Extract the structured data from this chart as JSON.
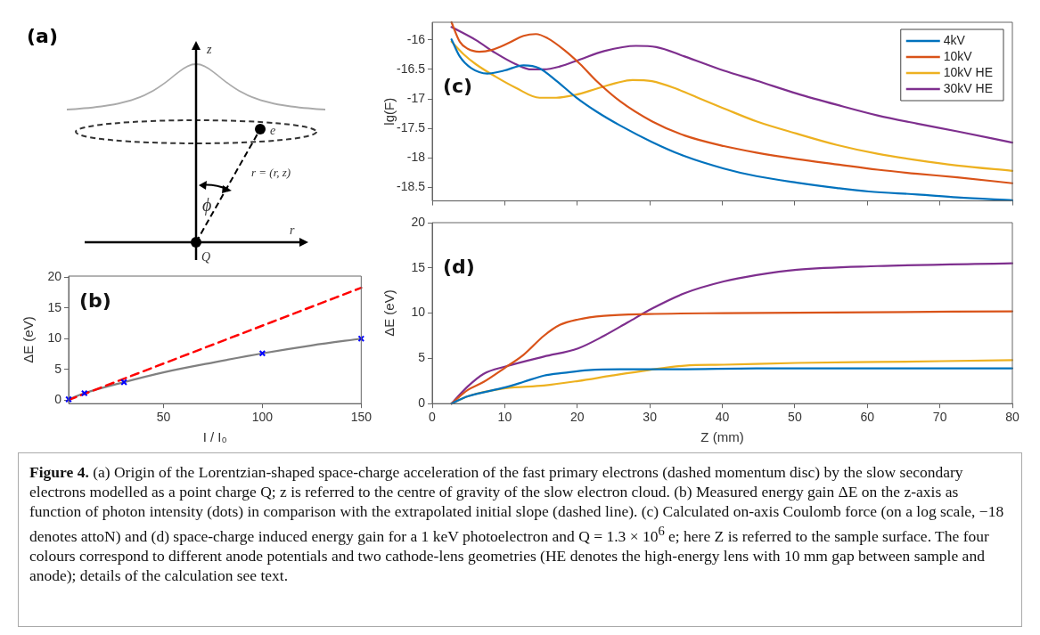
{
  "chart_data": [
    {
      "type": "other",
      "title": "(a)",
      "annotations": [
        "z",
        "e",
        "r = (r, z)",
        "ϕ",
        "Q",
        "r"
      ]
    },
    {
      "type": "line",
      "annotations": [
        "(b)"
      ],
      "xlabel": "I / I₀",
      "ylabel": "ΔE (eV)",
      "xlim": [
        2,
        150
      ],
      "xticks": [
        50,
        100,
        150
      ],
      "ylim": [
        -0.6,
        20.2
      ],
      "yticks": [
        0,
        5,
        10,
        15,
        20
      ],
      "series": [
        {
          "type": "scatter",
          "marker": "cross",
          "color": "#0000ff",
          "x": [
            2,
            10,
            30,
            100,
            150
          ],
          "values": [
            0.1,
            1.1,
            2.9,
            7.6,
            10.0
          ]
        },
        {
          "type": "line",
          "line_style": "dashed",
          "color": "#ff0000",
          "x": [
            2,
            150
          ],
          "values": [
            0,
            18.3
          ]
        },
        {
          "type": "line",
          "color": "#808080",
          "x": [
            2,
            10,
            30,
            50,
            75,
            100,
            125,
            150
          ],
          "values": [
            0.1,
            1.1,
            2.9,
            4.5,
            6.1,
            7.6,
            8.9,
            10.0
          ]
        }
      ]
    },
    {
      "type": "line",
      "annotations": [
        "(c)"
      ],
      "ylabel": "lg(F)",
      "xlim": [
        0,
        80
      ],
      "xticks": [
        0,
        10,
        20,
        30,
        40,
        50,
        60,
        70,
        80
      ],
      "ylim": [
        -18.73,
        -15.7
      ],
      "yticks": [
        -18.5,
        -18,
        -17.5,
        -17,
        -16.5,
        -16
      ],
      "tick_labels": "y",
      "legend": "top right",
      "x": [
        2.66,
        3.8,
        5.4,
        7.6,
        9.9,
        12.6,
        14.8,
        17.1,
        19.8,
        22.6,
        25.9,
        30.3,
        34.8,
        40.2,
        44.7,
        50.3,
        55.8,
        60.2,
        66.9,
        72.4,
        80
      ],
      "series": [
        {
          "name": "4kV",
          "color": "#0072bd",
          "values": [
            -15.99,
            -16.28,
            -16.48,
            -16.57,
            -16.52,
            -16.43,
            -16.48,
            -16.69,
            -16.97,
            -17.21,
            -17.45,
            -17.73,
            -17.97,
            -18.18,
            -18.31,
            -18.42,
            -18.51,
            -18.57,
            -18.62,
            -18.67,
            -18.72
          ]
        },
        {
          "name": "10kV",
          "color": "#d95319",
          "x": [
            2.66,
            3.8,
            4.9,
            6.5,
            8.2,
            10.4,
            12.6,
            14.3,
            15.9,
            18.2,
            20.4,
            22.6,
            25.9,
            30.3,
            34.8,
            40.2,
            44.7,
            50.3,
            55.8,
            61.4,
            66.9,
            72.4,
            80
          ],
          "values": [
            -15.7,
            -16.03,
            -16.15,
            -16.2,
            -16.17,
            -16.06,
            -15.93,
            -15.9,
            -15.97,
            -16.17,
            -16.41,
            -16.69,
            -17.04,
            -17.38,
            -17.62,
            -17.8,
            -17.91,
            -18.02,
            -18.11,
            -18.2,
            -18.27,
            -18.33,
            -18.43
          ]
        },
        {
          "name": "10kV HE",
          "color": "#edb120",
          "x": [
            2.66,
            4.3,
            6,
            8.7,
            11.5,
            14.8,
            17.1,
            19.8,
            22.6,
            25.4,
            27.6,
            30.3,
            33.7,
            37,
            40.2,
            44.7,
            50.3,
            55.8,
            61.4,
            66.9,
            72.4,
            80
          ],
          "values": [
            -16.03,
            -16.24,
            -16.41,
            -16.62,
            -16.81,
            -16.98,
            -16.98,
            -16.93,
            -16.83,
            -16.73,
            -16.68,
            -16.7,
            -16.83,
            -17.0,
            -17.16,
            -17.38,
            -17.59,
            -17.78,
            -17.93,
            -18.04,
            -18.13,
            -18.22
          ]
        },
        {
          "name": "30kV HE",
          "color": "#7e2f8e",
          "x": [
            2.66,
            6,
            8.7,
            11.5,
            13.7,
            15.4,
            17.6,
            20.4,
            23.7,
            28.1,
            30.9,
            34.8,
            40.2,
            44.7,
            50.3,
            55.8,
            61.4,
            66.9,
            72.4,
            80
          ],
          "values": [
            -15.78,
            -16.0,
            -16.22,
            -16.41,
            -16.5,
            -16.5,
            -16.45,
            -16.33,
            -16.19,
            -16.1,
            -16.12,
            -16.28,
            -16.52,
            -16.69,
            -16.91,
            -17.1,
            -17.28,
            -17.42,
            -17.55,
            -17.74
          ]
        }
      ]
    },
    {
      "type": "line",
      "annotations": [
        "(d)"
      ],
      "xlabel": "Z (mm)",
      "ylabel": "ΔE (eV)",
      "xlim": [
        0,
        80
      ],
      "xticks": [
        0,
        10,
        20,
        30,
        40,
        50,
        60,
        70,
        80
      ],
      "ylim": [
        0,
        20
      ],
      "yticks": [
        0,
        5,
        10,
        15,
        20
      ],
      "series": [
        {
          "color": "#0072bd",
          "x": [
            2.66,
            4.9,
            10.1,
            12.6,
            15.4,
            18.2,
            21.5,
            25.9,
            33.7,
            44.7,
            80
          ],
          "values": [
            0,
            0.8,
            1.8,
            2.4,
            3.1,
            3.4,
            3.7,
            3.8,
            3.8,
            3.9,
            3.9
          ]
        },
        {
          "color": "#d95319",
          "x": [
            2.66,
            4.9,
            7.1,
            10.1,
            12.6,
            15.4,
            17.6,
            20.1,
            23.7,
            29.8,
            40.2,
            80
          ],
          "values": [
            0,
            1.5,
            2.4,
            4.0,
            5.4,
            7.5,
            8.7,
            9.3,
            9.7,
            9.9,
            10.0,
            10.2
          ]
        },
        {
          "color": "#edb120",
          "x": [
            2.66,
            4.9,
            10.1,
            15.4,
            20.1,
            24.8,
            29.8,
            34.8,
            40.2,
            50.3,
            61.4,
            80
          ],
          "values": [
            0,
            0.8,
            1.7,
            2.0,
            2.5,
            3.1,
            3.7,
            4.2,
            4.3,
            4.5,
            4.6,
            4.8
          ]
        },
        {
          "color": "#7e2f8e",
          "x": [
            2.66,
            4.9,
            7.1,
            10.1,
            15.4,
            20.1,
            23.7,
            27,
            30.3,
            34.8,
            40.2,
            44.7,
            50.3,
            61.4,
            80
          ],
          "values": [
            0,
            1.9,
            3.3,
            4.1,
            5.2,
            6.1,
            7.5,
            9.0,
            10.5,
            12.2,
            13.5,
            14.2,
            14.8,
            15.2,
            15.5
          ]
        }
      ]
    },
    {
      "type": "other",
      "title": "Figure 4.",
      "annotations": [
        "(a) Origin of the Lorentzian-shaped space-charge acceleration of the fast primary electrons (dashed momentum disc) by the slow secondary electrons modelled as a point charge Q; z is referred to the centre of gravity of the slow electron cloud. (b) Measured energy gain ΔE on the z-axis as function of photon intensity (dots) in comparison with the extrapolated initial slope (dashed line). (c) Calculated on-axis Coulomb force (on a log scale, −18 denotes attoN) and (d) space-charge induced energy gain for a 1 keV photoelectron and Q = 1.3 × 10$^{6}$ e; here Z is referred to the sample surface. The four colours correspond to different anode potentials and two cathode-lens geometries (HE denotes the high-energy lens with 10 mm gap between sample and anode); details of the calculation see text."
      ]
    }
  ]
}
